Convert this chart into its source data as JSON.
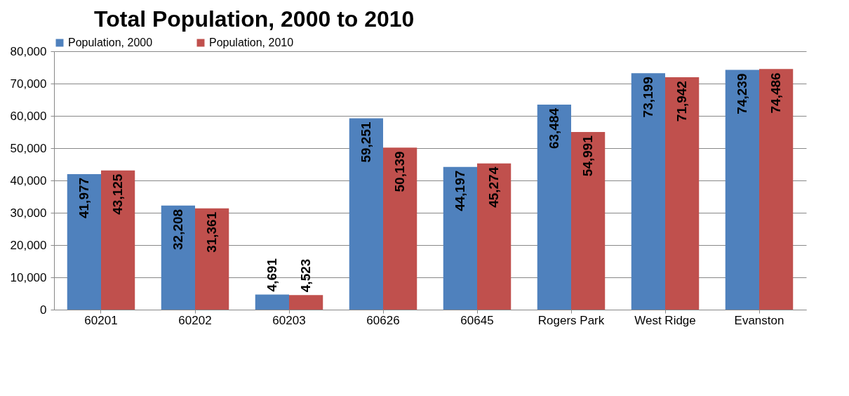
{
  "chart_data": {
    "type": "bar",
    "title": "Total Population, 2000 to 2010",
    "categories": [
      "60201",
      "60202",
      "60203",
      "60626",
      "60645",
      "Rogers Park",
      "West Ridge",
      "Evanston"
    ],
    "series": [
      {
        "name": "Population, 2000",
        "color": "#4f81bd",
        "values": [
          41977,
          32208,
          4691,
          59251,
          44197,
          63484,
          73199,
          74239
        ],
        "value_labels": [
          "41,977",
          "32,208",
          "4,691",
          "59,251",
          "44,197",
          "63,484",
          "73,199",
          "74,239"
        ]
      },
      {
        "name": "Population, 2010",
        "color": "#c0504d",
        "values": [
          43125,
          31361,
          4523,
          50139,
          45274,
          54991,
          71942,
          74486
        ],
        "value_labels": [
          "43,125",
          "31,361",
          "4,523",
          "50,139",
          "45,274",
          "54,991",
          "71,942",
          "74,486"
        ]
      }
    ],
    "ylim": [
      0,
      80000
    ],
    "yticks": [
      0,
      {
        "value": 10000,
        "label": "10,000"
      },
      {
        "value": 20000,
        "label": "20,000"
      },
      {
        "value": 30000,
        "label": "30,000"
      },
      {
        "value": 40000,
        "label": "40,000"
      },
      {
        "value": 50000,
        "label": "50,000"
      },
      {
        "value": 60000,
        "label": "60,000"
      },
      {
        "value": 70000,
        "label": "70,000"
      },
      {
        "value": 80000,
        "label": "80,000"
      }
    ],
    "grid": "y",
    "legend": "top"
  }
}
